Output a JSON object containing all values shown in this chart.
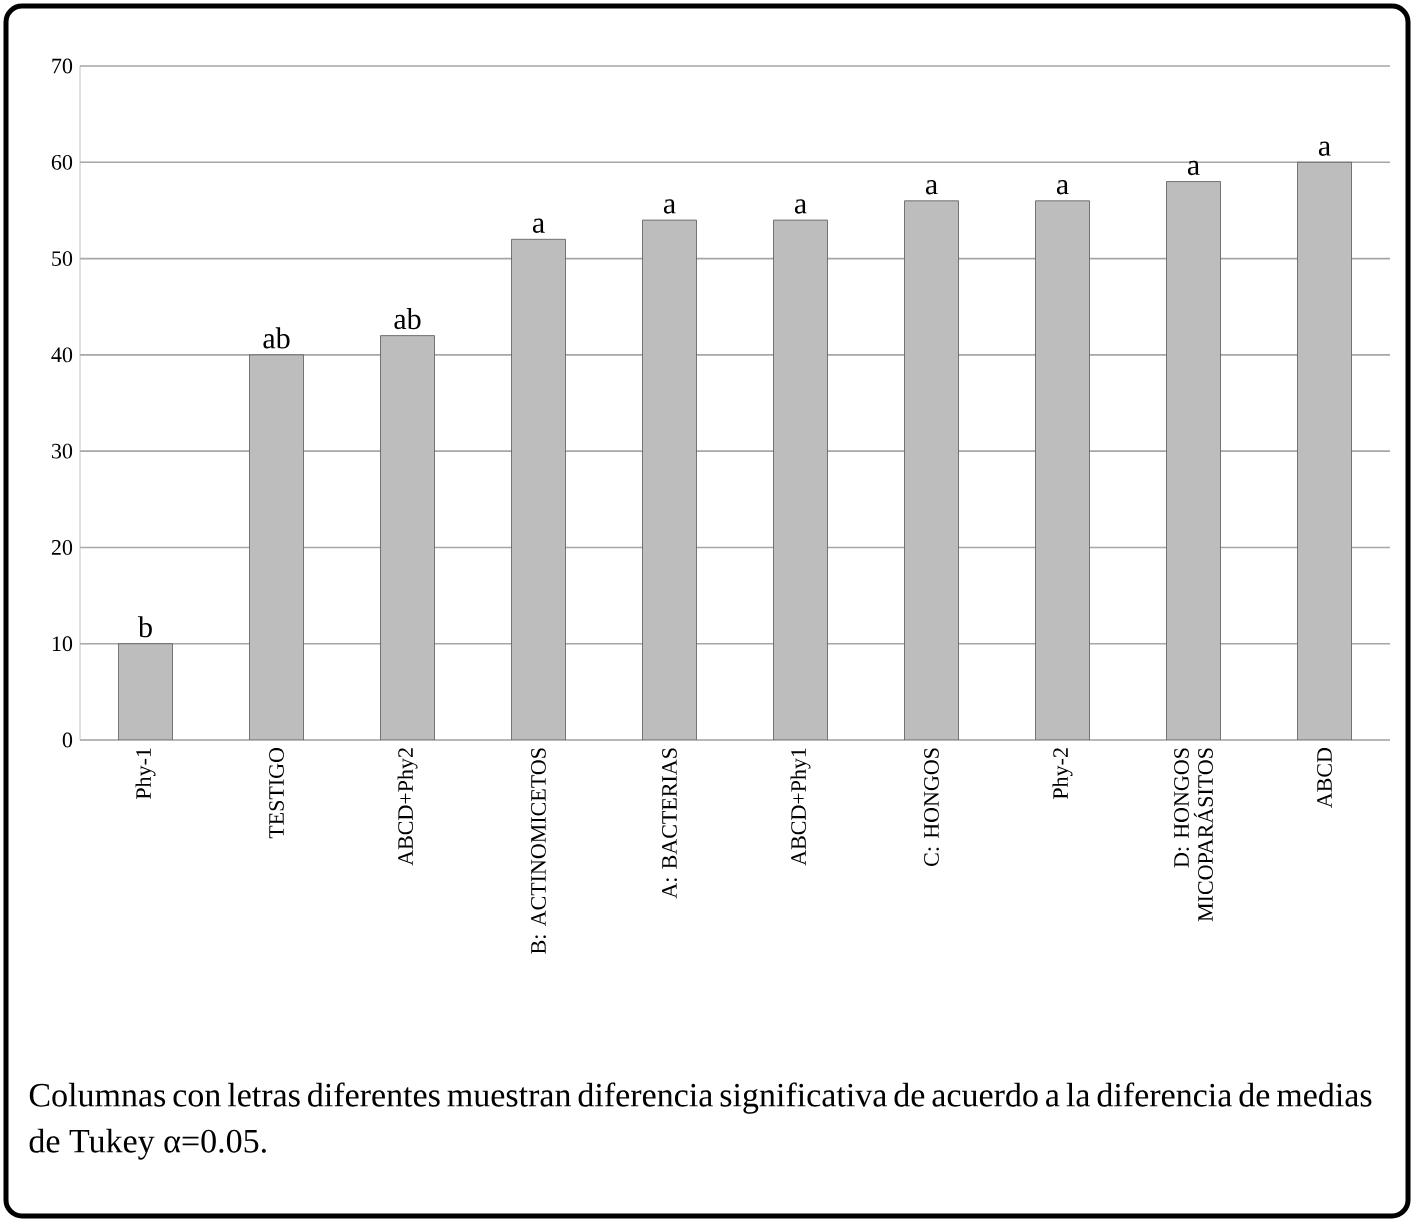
{
  "chart_data": {
    "type": "bar",
    "categories": [
      "Phy-1",
      "TESTIGO",
      "ABCD+Phy2",
      "B:  ACTINOMICETOS",
      "A:  BACTERIAS",
      "ABCD+Phy1",
      "C:  HONGOS",
      "Phy-2",
      "D:  HONGOS MICOPARÁSITOS",
      "ABCD"
    ],
    "values": [
      10,
      40,
      42,
      52,
      54,
      54,
      56,
      56,
      58,
      60
    ],
    "value_labels": [
      "b",
      "ab",
      "ab",
      "a",
      "a",
      "a",
      "a",
      "a",
      "a",
      "a"
    ],
    "color": "#bdbdbd",
    "ylim": [
      0,
      70
    ],
    "yticks": [
      0,
      10,
      20,
      30,
      40,
      50,
      60,
      70
    ],
    "grid": "y",
    "annotations": [
      "Columnas con letras diferentes muestran diferencia significativa de acuerdo a la diferencia de medias de Tukey α=0.05."
    ]
  }
}
